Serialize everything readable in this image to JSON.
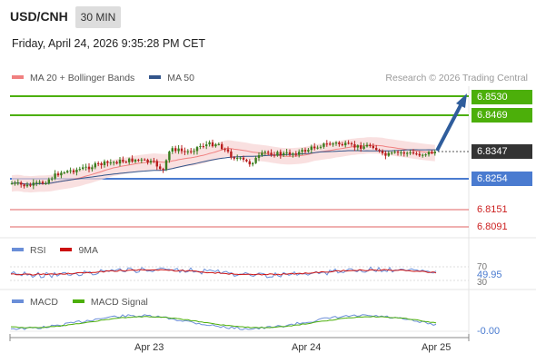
{
  "header": {
    "symbol": "USD/CNH",
    "timeframe": "30 MIN",
    "datetime": "Friday, April 24, 2026 9:35:28 PM CET"
  },
  "legend": {
    "items": [
      {
        "label": "MA 20 + Bollinger Bands",
        "color": "#f08080"
      },
      {
        "label": "MA 50",
        "color": "#33558b"
      }
    ],
    "research": "Research © 2026 Trading Central"
  },
  "levels": {
    "resistance_2": {
      "value": "6.8530",
      "color": "#4caf0a"
    },
    "resistance_1": {
      "value": "6.8469",
      "color": "#4caf0a"
    },
    "last_price": {
      "value": "6.8347",
      "color": "#333333"
    },
    "pivot": {
      "value": "6.8254",
      "color": "#4a7bd0"
    },
    "support_1": {
      "value": "6.8151",
      "color": "#cc2020"
    },
    "support_2": {
      "value": "6.8091",
      "color": "#cc2020"
    }
  },
  "rsi": {
    "legend": [
      {
        "label": "RSI",
        "color": "#6a8ed8"
      },
      {
        "label": "9MA",
        "color": "#cc1111"
      }
    ],
    "level_70": "70",
    "level_30": "30",
    "value": "49.95"
  },
  "macd": {
    "legend": [
      {
        "label": "MACD",
        "color": "#6a8ed8"
      },
      {
        "label": "MACD Signal",
        "color": "#4caf0a"
      }
    ],
    "value": "-0.00"
  },
  "xaxis": {
    "labels": [
      "Apr 23",
      "Apr 24",
      "Apr 25"
    ]
  }
}
